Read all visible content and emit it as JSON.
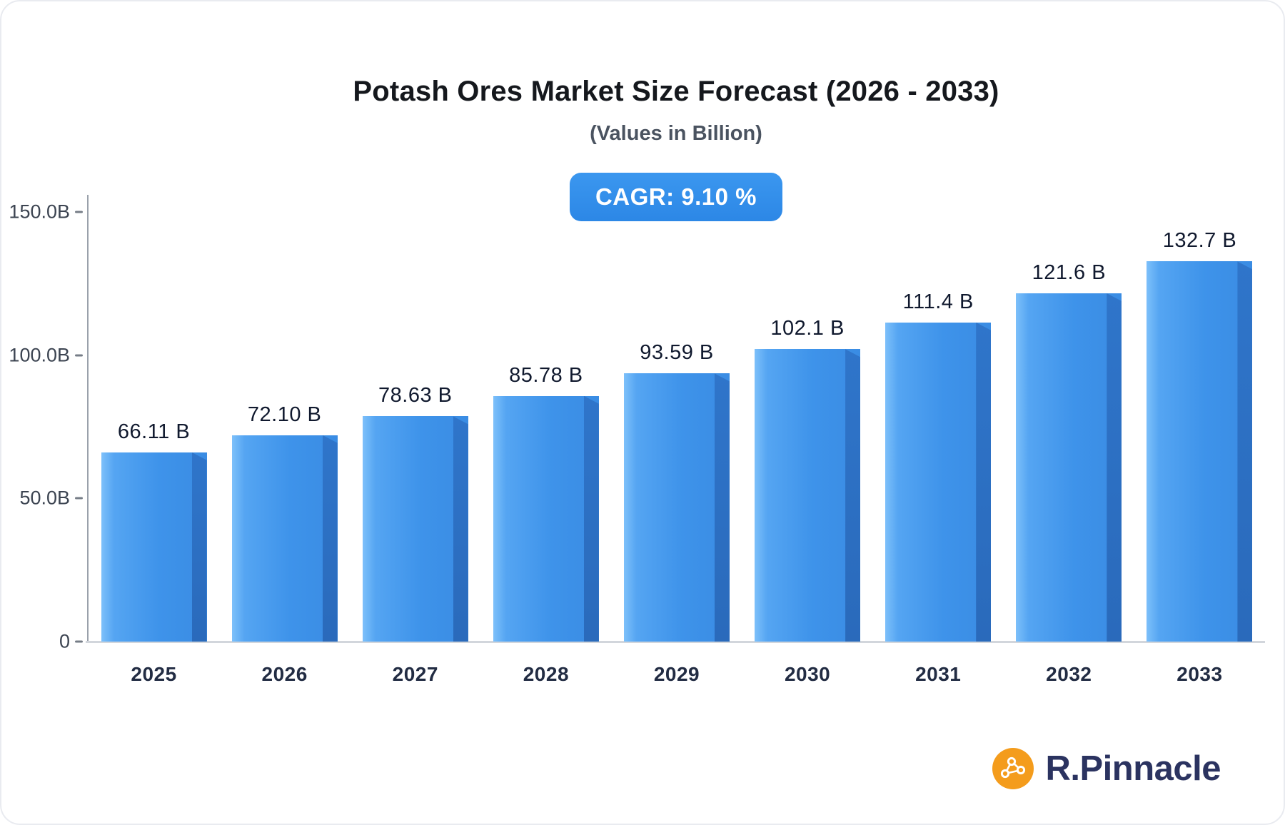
{
  "header": {
    "title": "Potash Ores Market Size Forecast (2026 - 2033)",
    "subtitle": "(Values in Billion)",
    "cagr_badge": "CAGR: 9.10 %"
  },
  "chart_data": {
    "type": "bar",
    "title": "Potash Ores Market Size Forecast (2026 - 2033)",
    "subtitle": "(Values in Billion)",
    "cagr": "9.10 %",
    "categories": [
      "2025",
      "2026",
      "2027",
      "2028",
      "2029",
      "2030",
      "2031",
      "2032",
      "2033"
    ],
    "values": [
      66.11,
      72.1,
      78.63,
      85.78,
      93.59,
      102.1,
      111.4,
      121.6,
      132.7
    ],
    "value_labels": [
      "66.11 B",
      "72.10 B",
      "78.63 B",
      "85.78 B",
      "93.59 B",
      "102.1 B",
      "111.4 B",
      "121.6 B",
      "132.7 B"
    ],
    "unit": "B",
    "xlabel": "",
    "ylabel": "",
    "ylim": [
      0,
      150
    ],
    "y_ticks": [
      "150.0B",
      "100.0B",
      "50.0B",
      "0"
    ],
    "y_tick_values": [
      150,
      100,
      50,
      0
    ],
    "grid": false,
    "legend": "none",
    "colors": {
      "bar_front": "#3e93ea",
      "bar_front_highlight": "#7dc0fa",
      "bar_side": "#2c6fc2",
      "badge_bg": "#2f8fea",
      "value_text": "#10192e",
      "axis_line": "#9aa1ab"
    }
  },
  "branding": {
    "logo_text": "R.Pinnacle",
    "logo_icon": "network-molecule-icon",
    "logo_icon_color": "#f49c1c",
    "logo_text_color": "#2b3360"
  }
}
